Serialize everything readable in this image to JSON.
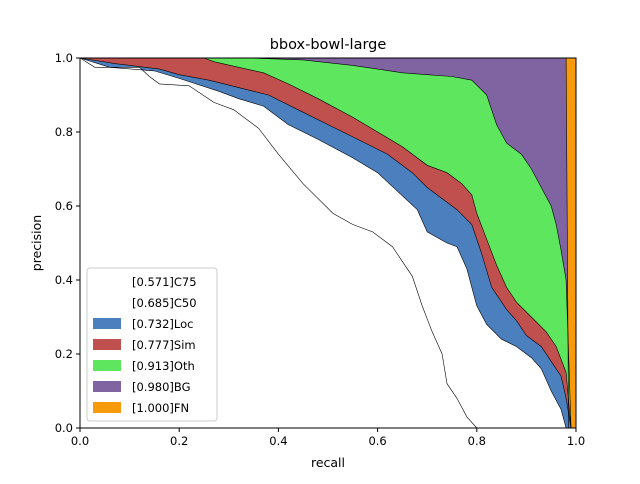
{
  "chart_data": {
    "type": "area",
    "title": "bbox-bowl-large",
    "xlabel": "recall",
    "ylabel": "precision",
    "xlim": [
      0,
      1
    ],
    "ylim": [
      0,
      1
    ],
    "x_ticks": [
      "0.0",
      "0.2",
      "0.4",
      "0.6",
      "0.8",
      "1.0"
    ],
    "y_ticks": [
      "0.0",
      "0.2",
      "0.4",
      "0.6",
      "0.8",
      "1.0"
    ],
    "grid": false,
    "legend_position": "lower-left",
    "series": [
      {
        "name": "[0.571]C75",
        "color": "#ffffff",
        "points": [
          [
            0,
            1
          ],
          [
            0.03,
            0.975
          ],
          [
            0.12,
            0.975
          ],
          [
            0.14,
            0.95
          ],
          [
            0.16,
            0.93
          ],
          [
            0.22,
            0.925
          ],
          [
            0.27,
            0.88
          ],
          [
            0.31,
            0.86
          ],
          [
            0.36,
            0.81
          ],
          [
            0.4,
            0.74
          ],
          [
            0.45,
            0.66
          ],
          [
            0.51,
            0.58
          ],
          [
            0.55,
            0.55
          ],
          [
            0.59,
            0.53
          ],
          [
            0.63,
            0.49
          ],
          [
            0.67,
            0.41
          ],
          [
            0.69,
            0.33
          ],
          [
            0.71,
            0.26
          ],
          [
            0.73,
            0.2
          ],
          [
            0.74,
            0.12
          ],
          [
            0.76,
            0.08
          ],
          [
            0.78,
            0.03
          ],
          [
            0.8,
            0
          ]
        ]
      },
      {
        "name": "[0.685]C50",
        "color": "#ffffff",
        "points": [
          [
            0,
            1
          ],
          [
            0.06,
            0.975
          ],
          [
            0.15,
            0.965
          ],
          [
            0.2,
            0.945
          ],
          [
            0.28,
            0.91
          ],
          [
            0.32,
            0.89
          ],
          [
            0.37,
            0.87
          ],
          [
            0.42,
            0.82
          ],
          [
            0.48,
            0.78
          ],
          [
            0.55,
            0.73
          ],
          [
            0.6,
            0.69
          ],
          [
            0.64,
            0.64
          ],
          [
            0.68,
            0.59
          ],
          [
            0.7,
            0.53
          ],
          [
            0.74,
            0.5
          ],
          [
            0.76,
            0.49
          ],
          [
            0.78,
            0.43
          ],
          [
            0.79,
            0.38
          ],
          [
            0.8,
            0.33
          ],
          [
            0.82,
            0.28
          ],
          [
            0.85,
            0.24
          ],
          [
            0.88,
            0.22
          ],
          [
            0.91,
            0.19
          ],
          [
            0.93,
            0.16
          ],
          [
            0.95,
            0.1
          ],
          [
            0.97,
            0.05
          ],
          [
            0.98,
            0
          ]
        ]
      },
      {
        "name": "[0.732]Loc",
        "color": "#4c7fbe",
        "points": [
          [
            0,
            1
          ],
          [
            0.07,
            0.985
          ],
          [
            0.16,
            0.97
          ],
          [
            0.2,
            0.955
          ],
          [
            0.26,
            0.94
          ],
          [
            0.32,
            0.92
          ],
          [
            0.38,
            0.9
          ],
          [
            0.44,
            0.86
          ],
          [
            0.5,
            0.82
          ],
          [
            0.56,
            0.78
          ],
          [
            0.62,
            0.74
          ],
          [
            0.67,
            0.69
          ],
          [
            0.7,
            0.65
          ],
          [
            0.74,
            0.61
          ],
          [
            0.76,
            0.59
          ],
          [
            0.79,
            0.55
          ],
          [
            0.81,
            0.47
          ],
          [
            0.83,
            0.38
          ],
          [
            0.86,
            0.32
          ],
          [
            0.88,
            0.29
          ],
          [
            0.9,
            0.25
          ],
          [
            0.93,
            0.22
          ],
          [
            0.95,
            0.18
          ],
          [
            0.97,
            0.14
          ],
          [
            0.98,
            0.08
          ],
          [
            0.99,
            0
          ]
        ]
      },
      {
        "name": "[0.777]Sim",
        "color": "#c0504d",
        "points": [
          [
            0,
            1
          ],
          [
            0.25,
            1
          ],
          [
            0.27,
            0.99
          ],
          [
            0.32,
            0.975
          ],
          [
            0.37,
            0.96
          ],
          [
            0.42,
            0.93
          ],
          [
            0.48,
            0.89
          ],
          [
            0.55,
            0.84
          ],
          [
            0.6,
            0.8
          ],
          [
            0.65,
            0.76
          ],
          [
            0.7,
            0.71
          ],
          [
            0.74,
            0.69
          ],
          [
            0.77,
            0.66
          ],
          [
            0.79,
            0.63
          ],
          [
            0.8,
            0.58
          ],
          [
            0.82,
            0.51
          ],
          [
            0.84,
            0.44
          ],
          [
            0.86,
            0.38
          ],
          [
            0.88,
            0.34
          ],
          [
            0.91,
            0.3
          ],
          [
            0.94,
            0.26
          ],
          [
            0.96,
            0.22
          ],
          [
            0.98,
            0.15
          ],
          [
            0.99,
            0
          ]
        ]
      },
      {
        "name": "[0.913]Oth",
        "color": "#5ee65e",
        "points": [
          [
            0,
            1
          ],
          [
            0.34,
            1
          ],
          [
            0.45,
            0.995
          ],
          [
            0.55,
            0.98
          ],
          [
            0.6,
            0.97
          ],
          [
            0.65,
            0.96
          ],
          [
            0.7,
            0.955
          ],
          [
            0.75,
            0.95
          ],
          [
            0.79,
            0.94
          ],
          [
            0.82,
            0.9
          ],
          [
            0.84,
            0.82
          ],
          [
            0.86,
            0.77
          ],
          [
            0.89,
            0.74
          ],
          [
            0.91,
            0.7
          ],
          [
            0.93,
            0.65
          ],
          [
            0.95,
            0.6
          ],
          [
            0.96,
            0.55
          ],
          [
            0.97,
            0.48
          ],
          [
            0.98,
            0.4
          ],
          [
            0.985,
            0.2
          ],
          [
            0.99,
            0
          ]
        ]
      },
      {
        "name": "[0.980]BG",
        "color": "#8064a2",
        "points": [
          [
            0,
            1
          ],
          [
            0.98,
            1
          ],
          [
            0.985,
            0
          ]
        ]
      },
      {
        "name": "[1.000]FN",
        "color": "#f79a0c",
        "points": [
          [
            0,
            1
          ],
          [
            1,
            1
          ],
          [
            1,
            0
          ]
        ]
      }
    ]
  }
}
